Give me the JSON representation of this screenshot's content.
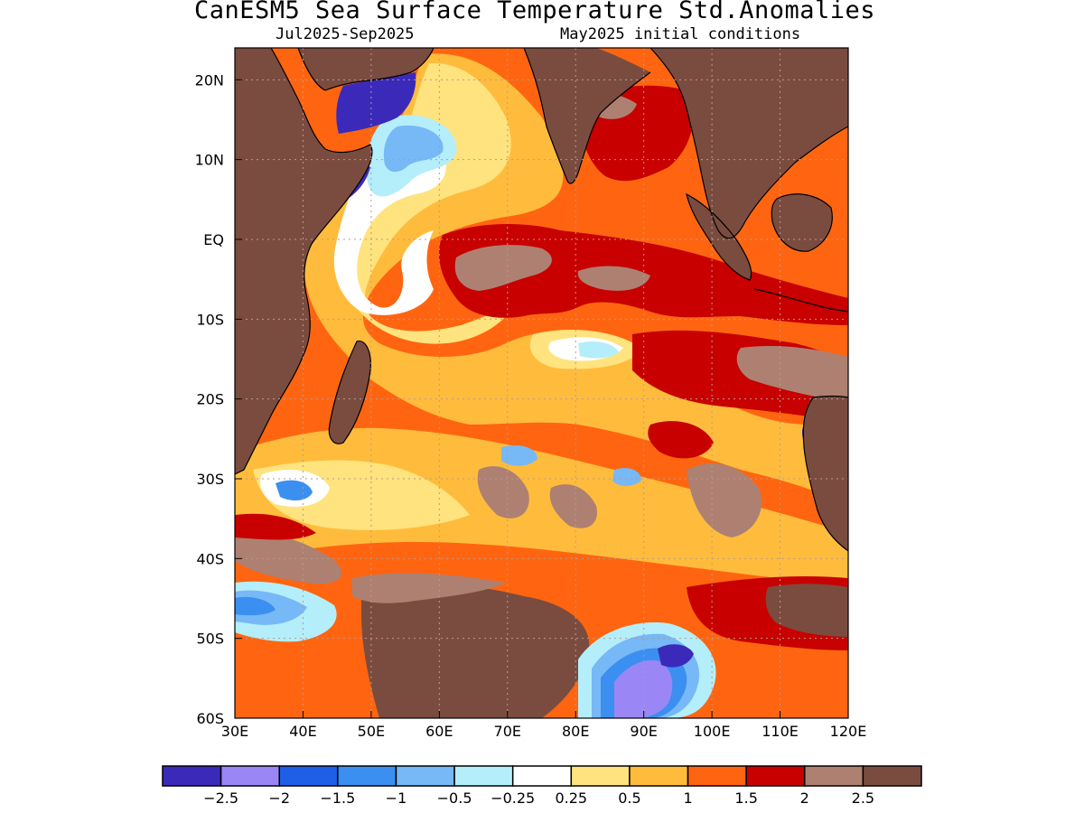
{
  "title": "CanESM5 Sea Surface Temperature Std.Anomalies",
  "subtitle_left": "Jul2025-Sep2025",
  "subtitle_right": "May2025 initial conditions",
  "map": {
    "lon_range": [
      30,
      120
    ],
    "lat_range": [
      -60,
      24
    ],
    "x_ticks": [
      "30E",
      "40E",
      "50E",
      "60E",
      "70E",
      "80E",
      "90E",
      "100E",
      "110E",
      "120E"
    ],
    "y_ticks": [
      "20N",
      "10N",
      "EQ",
      "10S",
      "20S",
      "30S",
      "40S",
      "50S",
      "60S"
    ],
    "grid": "dotted"
  },
  "legend": {
    "colors": [
      "#3b2aba",
      "#9a87f5",
      "#1f5fe8",
      "#3b8ff0",
      "#77b8f6",
      "#b4eefa",
      "#ffffff",
      "#ffe37e",
      "#ffbc3c",
      "#ff6510",
      "#c80000",
      "#ae8072",
      "#7a4c3f"
    ],
    "labels": [
      "-2.5",
      "-2",
      "-1.5",
      "-1",
      "-0.5",
      "-0.25",
      "0.25",
      "0.5",
      "1",
      "1.5",
      "2",
      "2.5"
    ]
  },
  "colors": {
    "land": "#7a4c3f",
    "warm_background": "#ff6510"
  }
}
